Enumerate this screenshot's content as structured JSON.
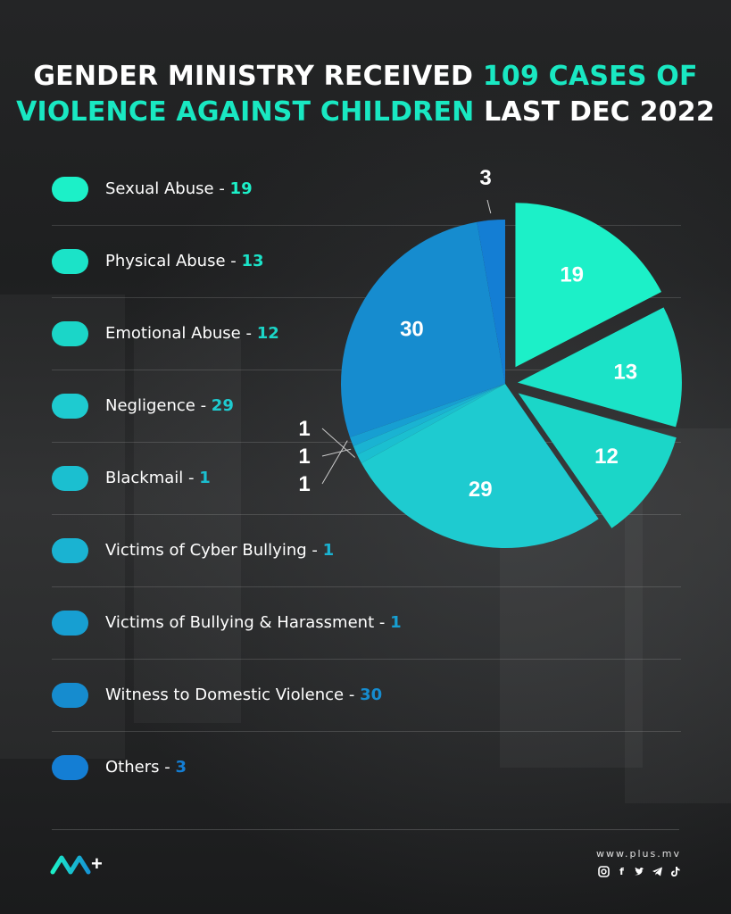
{
  "title": {
    "part1": "GENDER MINISTRY RECEIVED ",
    "highlight1": "109 CASES OF",
    "highlight2": "VIOLENCE AGAINST CHILDREN",
    "part2": " LAST DEC 2022"
  },
  "legend": [
    {
      "label": "Sexual Abuse - ",
      "value": "19"
    },
    {
      "label": "Physical Abuse - ",
      "value": "13"
    },
    {
      "label": "Emotional Abuse - ",
      "value": "12"
    },
    {
      "label": "Negligence - ",
      "value": "29"
    },
    {
      "label": "Blackmail - ",
      "value": "1"
    },
    {
      "label": "Victims of Cyber Bullying - ",
      "value": "1"
    },
    {
      "label": "Victims of Bullying & Harassment - ",
      "value": "1"
    },
    {
      "label": "Witness to Domestic Violence - ",
      "value": "30"
    },
    {
      "label": "Others - ",
      "value": "3"
    }
  ],
  "chart_data": {
    "type": "pie",
    "total": 109,
    "categories": [
      "Sexual Abuse",
      "Physical Abuse",
      "Emotional Abuse",
      "Negligence",
      "Blackmail",
      "Victims of Cyber Bullying",
      "Victims of Bullying & Harassment",
      "Witness to Domestic Violence",
      "Others"
    ],
    "values": [
      19,
      13,
      12,
      29,
      1,
      1,
      1,
      30,
      3
    ],
    "colors": [
      "#1cf0c8",
      "#1be3c8",
      "#1bd6c8",
      "#1ecbd0",
      "#1bbfd0",
      "#1ab3d2",
      "#179fd2",
      "#168ccf",
      "#147ed4"
    ],
    "data_labels": [
      "19",
      "13",
      "12",
      "29",
      "1",
      "1",
      "1",
      "30",
      "3"
    ]
  },
  "footer": {
    "website": "www.plus.mv",
    "logo_text": "+",
    "social_icons": [
      "instagram-icon",
      "facebook-icon",
      "twitter-icon",
      "telegram-icon",
      "tiktok-icon"
    ]
  },
  "colors": {
    "accent": "#19e8c2",
    "background": "#1b1c1d"
  }
}
